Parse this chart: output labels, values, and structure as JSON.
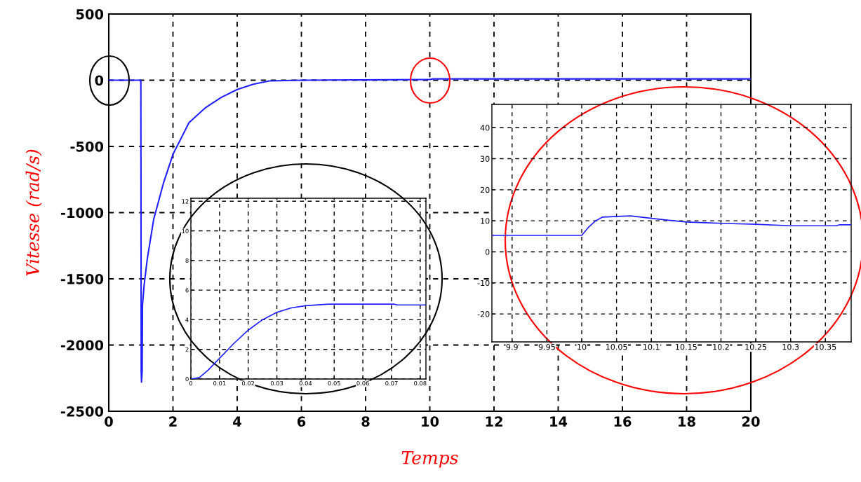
{
  "chart_data": [
    {
      "type": "line",
      "xlabel": "Temps",
      "ylabel": "Vitesse (rad/s)",
      "x": [
        0,
        1.0,
        1.01,
        1.02,
        1.04,
        1.05,
        1.1,
        1.2,
        1.4,
        1.7,
        2,
        2.5,
        3,
        3.5,
        4,
        4.5,
        5,
        6,
        9.9,
        10.0,
        10.1,
        10.5,
        20
      ],
      "series": [
        {
          "color": "#2020ff",
          "values": [
            0,
            0,
            -2200,
            -2280,
            -2200,
            -1700,
            -1550,
            -1350,
            -1050,
            -780,
            -560,
            -320,
            -210,
            -130,
            -70,
            -30,
            -5,
            0,
            5,
            5,
            10,
            10,
            10
          ]
        }
      ],
      "xlim": [
        0,
        20
      ],
      "ylim": [
        -2500,
        500
      ],
      "xticks": [
        0,
        2,
        4,
        6,
        8,
        10,
        12,
        14,
        16,
        18,
        20
      ],
      "yticks": [
        -2500,
        -2000,
        -1500,
        -1000,
        -500,
        0,
        500
      ],
      "grid": true
    },
    {
      "type": "line",
      "x": [
        0,
        0.003,
        0.006,
        0.01,
        0.015,
        0.02,
        0.025,
        0.03,
        0.035,
        0.04,
        0.048,
        0.06,
        0.071,
        0.072,
        0.082
      ],
      "series": [
        {
          "color": "#2020ff",
          "values": [
            0,
            0.1,
            0.6,
            1.4,
            2.4,
            3.3,
            4.0,
            4.5,
            4.8,
            4.95,
            5.05,
            5.05,
            5.05,
            5.0,
            5.0
          ]
        }
      ],
      "xlim": [
        0,
        0.082
      ],
      "ylim": [
        0,
        12.2
      ],
      "xticks": [
        0,
        0.01,
        0.02,
        0.03,
        0.04,
        0.05,
        0.06,
        0.07,
        0.08
      ],
      "yticks": [
        0,
        2,
        4,
        6,
        8,
        10,
        12
      ],
      "grid": true
    },
    {
      "type": "line",
      "x": [
        9.871,
        10.0,
        10.01,
        10.02,
        10.03,
        10.07,
        10.1,
        10.12,
        10.15,
        10.2,
        10.25,
        10.3,
        10.365,
        10.37,
        10.387
      ],
      "series": [
        {
          "color": "#2020ff",
          "values": [
            5.3,
            5.3,
            8,
            10,
            11.2,
            11.6,
            10.8,
            10.3,
            9.6,
            9.2,
            8.9,
            8.4,
            8.4,
            8.7,
            8.7
          ]
        }
      ],
      "xlim": [
        9.871,
        10.387
      ],
      "ylim": [
        -29,
        47.5
      ],
      "xticks": [
        9.9,
        9.95,
        10,
        10.05,
        10.1,
        10.15,
        10.2,
        10.25,
        10.3,
        10.35
      ],
      "yticks": [
        -20,
        -10,
        0,
        10,
        20,
        30,
        40
      ],
      "grid": true
    }
  ]
}
